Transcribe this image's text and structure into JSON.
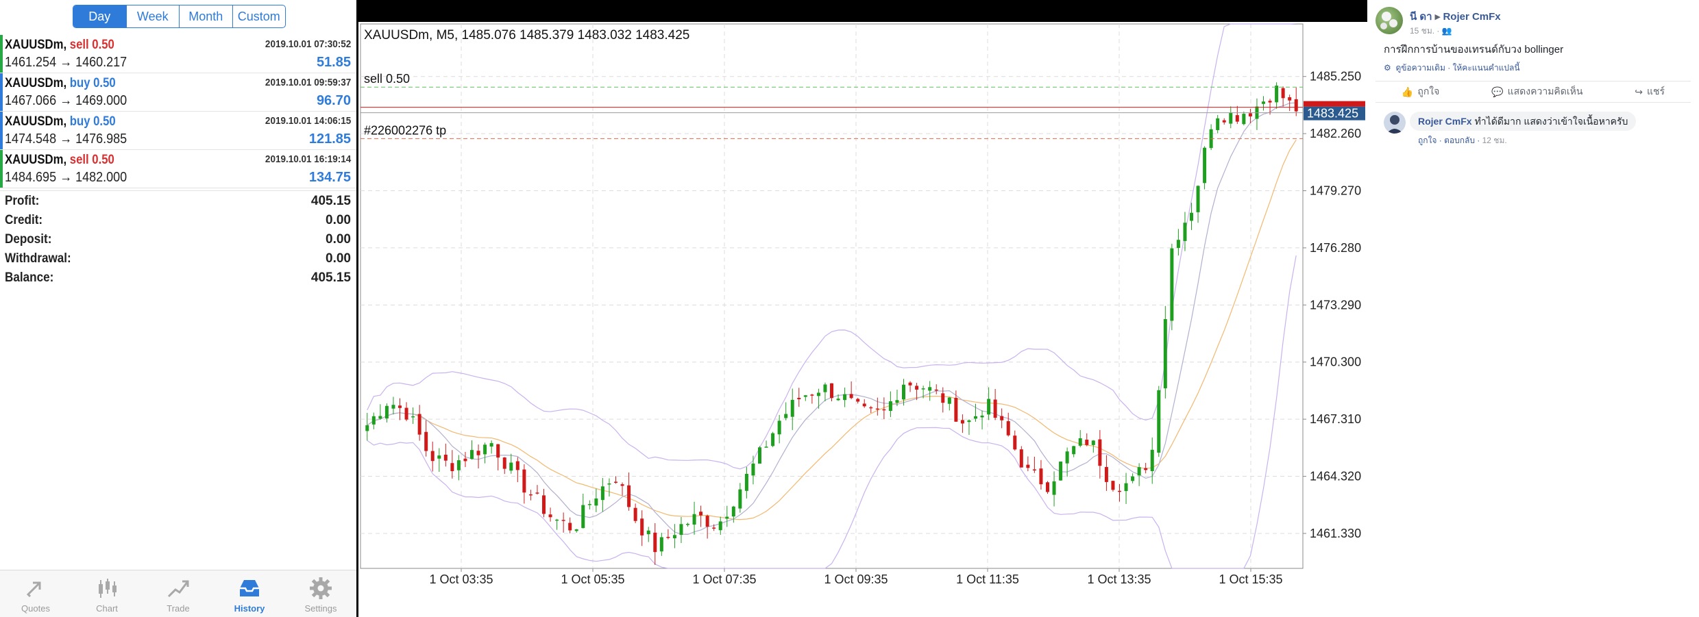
{
  "history": {
    "periods": [
      "Day",
      "Week",
      "Month",
      "Custom"
    ],
    "active_period": "Day",
    "trades": [
      {
        "symbol": "XAUUSDm,",
        "side": "sell 0.50",
        "side_type": "sell",
        "time": "2019.10.01 07:30:52",
        "prices": "1461.254 → 1460.217",
        "profit": "51.85"
      },
      {
        "symbol": "XAUUSDm,",
        "side": "buy 0.50",
        "side_type": "buy",
        "time": "2019.10.01 09:59:37",
        "prices": "1467.066 → 1469.000",
        "profit": "96.70"
      },
      {
        "symbol": "XAUUSDm,",
        "side": "buy 0.50",
        "side_type": "buy",
        "time": "2019.10.01 14:06:15",
        "prices": "1474.548 → 1476.985",
        "profit": "121.85"
      },
      {
        "symbol": "XAUUSDm,",
        "side": "sell 0.50",
        "side_type": "sell",
        "time": "2019.10.01 16:19:14",
        "prices": "1484.695 → 1482.000",
        "profit": "134.75"
      }
    ],
    "summary": [
      {
        "label": "Profit:",
        "value": "405.15"
      },
      {
        "label": "Credit:",
        "value": "0.00"
      },
      {
        "label": "Deposit:",
        "value": "0.00"
      },
      {
        "label": "Withdrawal:",
        "value": "0.00"
      },
      {
        "label": "Balance:",
        "value": "405.15"
      }
    ],
    "tabs": [
      {
        "label": "Quotes",
        "icon": "quotes-icon"
      },
      {
        "label": "Chart",
        "icon": "chart-icon"
      },
      {
        "label": "Trade",
        "icon": "trade-icon"
      },
      {
        "label": "History",
        "icon": "history-icon"
      },
      {
        "label": "Settings",
        "icon": "gear-icon"
      }
    ],
    "active_tab": "History"
  },
  "chart": {
    "header": "XAUUSDm, M5, 1485.076 1485.379 1483.032 1483.425",
    "order_line_sell": "sell 0.50",
    "order_line_tp": "#226002276 tp",
    "current_price": "1483.425",
    "price_labels": [
      "1485.250",
      "1482.260",
      "1479.270",
      "1476.280",
      "1473.290",
      "1470.300",
      "1467.310",
      "1464.320",
      "1461.330"
    ],
    "time_labels": [
      "1 Oct 03:35",
      "1 Oct 05:35",
      "1 Oct 07:35",
      "1 Oct 09:35",
      "1 Oct 11:35",
      "1 Oct 13:35",
      "1 Oct 15:35"
    ],
    "colors": {
      "bull": "#1e9e1e",
      "bear": "#d01a1a",
      "ma_fast": "#b0b0d0",
      "ma_slow": "#f2b870",
      "bands": "#c8b2f0",
      "sell_line": "#5bbf5b",
      "tp_line": "#e06a4a",
      "price_line": "#d01a1a",
      "price_tag": "#2b5a8f"
    }
  },
  "chart_data": {
    "type": "candlestick",
    "symbol": "XAUUSDm",
    "timeframe": "M5",
    "ylim": [
      1459.5,
      1488.0
    ],
    "current_price": 1483.425,
    "sell_order_price": 1484.695,
    "tp_price": 1482.0,
    "x": [
      "1 Oct 03:35",
      "1 Oct 05:35",
      "1 Oct 07:35",
      "1 Oct 09:35",
      "1 Oct 11:35",
      "1 Oct 13:35",
      "1 Oct 15:35"
    ],
    "key_levels": [
      1485.25,
      1482.26,
      1479.27,
      1476.28,
      1473.29,
      1470.3,
      1467.31,
      1464.32,
      1461.33
    ],
    "close_path": [
      1467.0,
      1468.3,
      1467.6,
      1465.4,
      1464.9,
      1465.5,
      1466.1,
      1464.6,
      1463.3,
      1462.1,
      1461.6,
      1463.3,
      1464.4,
      1462.1,
      1460.5,
      1461.6,
      1462.2,
      1461.8,
      1463.6,
      1465.4,
      1467.3,
      1468.5,
      1469.0,
      1468.5,
      1467.6,
      1467.6,
      1469.3,
      1469.0,
      1468.3,
      1467.0,
      1468.1,
      1466.5,
      1464.5,
      1463.9,
      1465.6,
      1466.3,
      1464.0,
      1463.9,
      1465.4,
      1476.5,
      1478.5,
      1483.4,
      1483.2,
      1483.6,
      1484.6,
      1483.4
    ]
  },
  "facebook": {
    "author": "นี ดา",
    "page": "Rojer CmFx",
    "time": "15 ชม. · ",
    "post_text": "การฝึกการบ้านของเทรนด์กับวง bollinger",
    "see_original": "ดูข้อความเดิม",
    "rate_translation": "ให้คะแนนคำแปลนี้",
    "actions": [
      "ถูกใจ",
      "แสดงความคิดเห็น",
      "แชร์"
    ],
    "comment": {
      "author": "Rojer CmFx",
      "text": "ทำได้ดีมาก แสดงว่าเข้าใจเนื้อหาครับ",
      "like": "ถูกใจ",
      "reply": "ตอบกลับ",
      "time": "12 ชม."
    }
  }
}
